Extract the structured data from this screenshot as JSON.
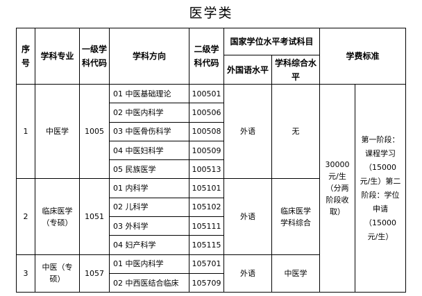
{
  "title": "医学类",
  "headers": {
    "seq": "序号",
    "major": "学科专业",
    "level1_code": "一级学科代码",
    "direction": "学科方向",
    "level2_code": "二级学科代码",
    "exam": "国家学位水平考试科目",
    "foreign": "外国语水平",
    "comprehensive": "学科综合水平",
    "fee": "学费标准"
  },
  "groups": [
    {
      "seq": "1",
      "major": "中医学",
      "code": "1005",
      "foreign": "外语",
      "comprehensive": "无",
      "directions": [
        {
          "name": "01 中医基础理论",
          "code": "100501"
        },
        {
          "name": "02 中医内科学",
          "code": "100506"
        },
        {
          "name": "03 中医骨伤科学",
          "code": "100508"
        },
        {
          "name": "04 中医妇科学",
          "code": "100509"
        },
        {
          "name": "05 民族医学",
          "code": "100513"
        }
      ]
    },
    {
      "seq": "2",
      "major": "临床医学（专硕）",
      "code": "1051",
      "foreign": "外语",
      "comprehensive": "临床医学学科综合",
      "directions": [
        {
          "name": "01 内科学",
          "code": "105101"
        },
        {
          "name": "02 儿科学",
          "code": "105102"
        },
        {
          "name": "03 外科学",
          "code": "105111"
        },
        {
          "name": "04 妇产科学",
          "code": "105115"
        }
      ]
    },
    {
      "seq": "3",
      "major": "中医（专硕）",
      "code": "1057",
      "foreign": "外语",
      "comprehensive": "中医学",
      "directions": [
        {
          "name": "01 中医内科学",
          "code": "105701"
        },
        {
          "name": "02 中西医结合临床",
          "code": "105709"
        }
      ]
    }
  ],
  "fee_total": "30000元/生（分两阶段收取）",
  "fee_detail": "第一阶段：课程学习（15000元/生）第二阶段：学位申请（15000元/生）"
}
